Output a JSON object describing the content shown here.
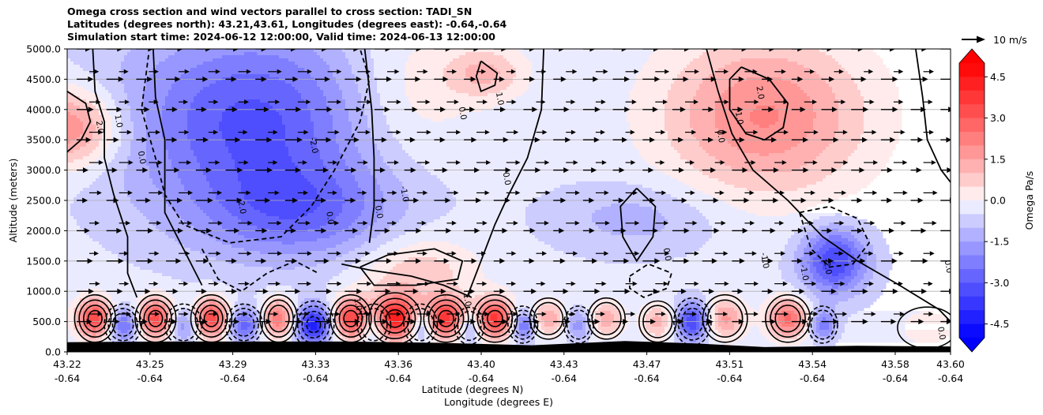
{
  "chart_data": {
    "type": "heatmap",
    "title_lines": [
      "Omega cross section and wind vectors parallel to cross section: TADI_SN",
      "Latitudes (degrees north): 43.21,43.61, Longitudes (degrees east): -0.64,-0.64",
      "Simulation start time: 2024-06-12 12:00:00, Valid time: 2024-06-13 12:00:00"
    ],
    "ylabel": "Altitude (meters)",
    "xlabel_lat": "Latitude (degrees N)",
    "xlabel_lon": "Longitude (degrees E)",
    "ylim": [
      0,
      5000
    ],
    "yticks": [
      "0.0",
      "500.0",
      "1000.0",
      "1500.0",
      "2000.0",
      "2500.0",
      "3000.0",
      "3500.0",
      "4000.0",
      "4500.0",
      "5000.0"
    ],
    "xticks": [
      {
        "lat": "43.22",
        "lon": "-0.64"
      },
      {
        "lat": "43.25",
        "lon": "-0.64"
      },
      {
        "lat": "43.29",
        "lon": "-0.64"
      },
      {
        "lat": "43.33",
        "lon": "-0.64"
      },
      {
        "lat": "43.36",
        "lon": "-0.64"
      },
      {
        "lat": "43.40",
        "lon": "-0.64"
      },
      {
        "lat": "43.43",
        "lon": "-0.64"
      },
      {
        "lat": "43.47",
        "lon": "-0.64"
      },
      {
        "lat": "43.51",
        "lon": "-0.64"
      },
      {
        "lat": "43.54",
        "lon": "-0.64"
      },
      {
        "lat": "43.58",
        "lon": "-0.64"
      },
      {
        "lat": "43.60",
        "lon": "-0.64"
      }
    ],
    "colorbar": {
      "label": "Omega Pa/s",
      "range": [
        -5,
        5
      ],
      "ticks": [
        "-4.5",
        "-3.0",
        "-1.5",
        "0.0",
        "1.5",
        "3.0",
        "4.5"
      ],
      "colormap": "bwr",
      "low_color": "#0000ff",
      "high_color": "#ff0000"
    },
    "quiver_key": "10 m/s",
    "grid": "horizontal",
    "omega_blobs": [
      {
        "lat": 43.22,
        "alt": 3700,
        "sx": 0.016,
        "sy": 450,
        "v": 2.6
      },
      {
        "lat": 43.3,
        "alt": 3800,
        "sx": 0.04,
        "sy": 1100,
        "v": -2.8
      },
      {
        "lat": 43.32,
        "alt": 2300,
        "sx": 0.03,
        "sy": 550,
        "v": -1.8
      },
      {
        "lat": 43.365,
        "alt": 4200,
        "sx": 0.022,
        "sy": 900,
        "v": 1.0
      },
      {
        "lat": 43.4,
        "alt": 4600,
        "sx": 0.012,
        "sy": 300,
        "v": 1.4
      },
      {
        "lat": 43.37,
        "alt": 1300,
        "sx": 0.018,
        "sy": 450,
        "v": 1.3
      },
      {
        "lat": 43.52,
        "alt": 3900,
        "sx": 0.03,
        "sy": 900,
        "v": 2.4
      },
      {
        "lat": 43.55,
        "alt": 1500,
        "sx": 0.01,
        "sy": 380,
        "v": -3.2
      },
      {
        "lat": 43.465,
        "alt": 2200,
        "sx": 0.025,
        "sy": 400,
        "v": -0.9
      },
      {
        "lat": 43.232,
        "alt": 550,
        "sx": 0.0055,
        "sy": 230,
        "v": 3.8
      },
      {
        "lat": 43.244,
        "alt": 450,
        "sx": 0.005,
        "sy": 200,
        "v": -2.5
      },
      {
        "lat": 43.258,
        "alt": 550,
        "sx": 0.0055,
        "sy": 230,
        "v": 3.8
      },
      {
        "lat": 43.27,
        "alt": 450,
        "sx": 0.005,
        "sy": 200,
        "v": -1.8
      },
      {
        "lat": 43.282,
        "alt": 550,
        "sx": 0.0055,
        "sy": 230,
        "v": 3.8
      },
      {
        "lat": 43.296,
        "alt": 450,
        "sx": 0.005,
        "sy": 200,
        "v": -2.5
      },
      {
        "lat": 43.311,
        "alt": 550,
        "sx": 0.005,
        "sy": 230,
        "v": 2.8
      },
      {
        "lat": 43.326,
        "alt": 450,
        "sx": 0.0055,
        "sy": 230,
        "v": -4.0
      },
      {
        "lat": 43.342,
        "alt": 550,
        "sx": 0.0055,
        "sy": 230,
        "v": 3.8
      },
      {
        "lat": 43.352,
        "alt": 450,
        "sx": 0.0045,
        "sy": 200,
        "v": -1.8
      },
      {
        "lat": 43.361,
        "alt": 550,
        "sx": 0.007,
        "sy": 250,
        "v": 4.8
      },
      {
        "lat": 43.372,
        "alt": 450,
        "sx": 0.0045,
        "sy": 200,
        "v": -2.2
      },
      {
        "lat": 43.383,
        "alt": 550,
        "sx": 0.006,
        "sy": 230,
        "v": 4.0
      },
      {
        "lat": 43.393,
        "alt": 430,
        "sx": 0.004,
        "sy": 180,
        "v": -2.0
      },
      {
        "lat": 43.404,
        "alt": 550,
        "sx": 0.006,
        "sy": 230,
        "v": 4.0
      },
      {
        "lat": 43.416,
        "alt": 450,
        "sx": 0.004,
        "sy": 180,
        "v": -2.5
      },
      {
        "lat": 43.427,
        "alt": 550,
        "sx": 0.005,
        "sy": 200,
        "v": 1.8
      },
      {
        "lat": 43.44,
        "alt": 450,
        "sx": 0.004,
        "sy": 180,
        "v": -1.5
      },
      {
        "lat": 43.452,
        "alt": 550,
        "sx": 0.005,
        "sy": 200,
        "v": 1.7
      },
      {
        "lat": 43.474,
        "alt": 500,
        "sx": 0.005,
        "sy": 200,
        "v": 1.6
      },
      {
        "lat": 43.489,
        "alt": 500,
        "sx": 0.005,
        "sy": 230,
        "v": -3.2
      },
      {
        "lat": 43.503,
        "alt": 550,
        "sx": 0.006,
        "sy": 230,
        "v": 2.0
      },
      {
        "lat": 43.53,
        "alt": 550,
        "sx": 0.006,
        "sy": 230,
        "v": 3.0
      },
      {
        "lat": 43.545,
        "alt": 450,
        "sx": 0.004,
        "sy": 180,
        "v": -2.0
      },
      {
        "lat": 43.59,
        "alt": 400,
        "sx": 0.008,
        "sy": 200,
        "v": 0.8
      }
    ],
    "zero_contours": [
      [
        [
          43.231,
          5000
        ],
        [
          43.232,
          4300
        ],
        [
          43.236,
          3800
        ],
        [
          43.236,
          3200
        ],
        [
          43.24,
          2600
        ],
        [
          43.246,
          1900
        ],
        [
          43.246,
          1300
        ],
        [
          43.25,
          900
        ]
      ],
      [
        [
          43.257,
          5000
        ],
        [
          43.258,
          4200
        ],
        [
          43.262,
          3500
        ],
        [
          43.262,
          2800
        ],
        [
          43.262,
          2300
        ],
        [
          43.27,
          1700
        ],
        [
          43.278,
          1100
        ]
      ],
      [
        [
          43.348,
          5000
        ],
        [
          43.351,
          4000
        ],
        [
          43.352,
          3200
        ],
        [
          43.352,
          2400
        ],
        [
          43.35,
          1800
        ]
      ],
      [
        [
          43.425,
          5000
        ],
        [
          43.424,
          4000
        ],
        [
          43.418,
          3200
        ],
        [
          43.41,
          2600
        ],
        [
          43.404,
          2100
        ],
        [
          43.398,
          1500
        ],
        [
          43.392,
          900
        ]
      ],
      [
        [
          43.495,
          5000
        ],
        [
          43.5,
          4300
        ],
        [
          43.506,
          3600
        ],
        [
          43.515,
          3000
        ],
        [
          43.53,
          2500
        ],
        [
          43.545,
          1900
        ],
        [
          43.56,
          1500
        ],
        [
          43.578,
          1100
        ],
        [
          43.595,
          700
        ],
        [
          43.6,
          500
        ]
      ],
      [
        [
          43.585,
          5000
        ],
        [
          43.588,
          4200
        ],
        [
          43.59,
          3500
        ],
        [
          43.596,
          3000
        ],
        [
          43.6,
          2800
        ]
      ],
      [
        [
          43.465,
          2700
        ],
        [
          43.458,
          2400
        ],
        [
          43.459,
          1900
        ],
        [
          43.465,
          1500
        ],
        [
          43.472,
          1900
        ],
        [
          43.473,
          2400
        ],
        [
          43.465,
          2700
        ]
      ],
      [
        [
          43.338,
          1450
        ],
        [
          43.35,
          1350
        ],
        [
          43.368,
          1250
        ],
        [
          43.382,
          1100
        ],
        [
          43.394,
          900
        ]
      ]
    ],
    "neg_contours": [
      [
        [
          43.255,
          4900
        ],
        [
          43.252,
          4000
        ],
        [
          43.258,
          3200
        ],
        [
          43.262,
          2600
        ],
        [
          43.27,
          2100
        ],
        [
          43.29,
          1800
        ],
        [
          43.312,
          1900
        ],
        [
          43.325,
          2400
        ],
        [
          43.335,
          3000
        ],
        [
          43.346,
          3800
        ],
        [
          43.35,
          4500
        ],
        [
          43.346,
          5000
        ]
      ],
      [
        [
          43.278,
          1700
        ],
        [
          43.285,
          1200
        ],
        [
          43.295,
          1000
        ],
        [
          43.306,
          1300
        ],
        [
          43.318,
          1500
        ],
        [
          43.328,
          1300
        ]
      ],
      [
        [
          43.535,
          2300
        ],
        [
          43.54,
          1700
        ],
        [
          43.548,
          1400
        ],
        [
          43.558,
          1450
        ],
        [
          43.565,
          1800
        ],
        [
          43.56,
          2200
        ],
        [
          43.548,
          2400
        ],
        [
          43.535,
          2300
        ]
      ],
      [
        [
          43.462,
          1250
        ],
        [
          43.47,
          1450
        ],
        [
          43.48,
          1300
        ],
        [
          43.478,
          1050
        ],
        [
          43.468,
          900
        ],
        [
          43.462,
          1050
        ],
        [
          43.462,
          1250
        ]
      ]
    ],
    "pos_contours": [
      [
        [
          43.22,
          3300
        ],
        [
          43.226,
          3500
        ],
        [
          43.23,
          3800
        ],
        [
          43.228,
          4100
        ],
        [
          43.22,
          4300
        ]
      ],
      [
        [
          43.51,
          4700
        ],
        [
          43.522,
          4500
        ],
        [
          43.53,
          4100
        ],
        [
          43.528,
          3700
        ],
        [
          43.52,
          3500
        ],
        [
          43.512,
          3600
        ],
        [
          43.505,
          4000
        ],
        [
          43.505,
          4500
        ],
        [
          43.51,
          4700
        ]
      ],
      [
        [
          43.398,
          4800
        ],
        [
          43.405,
          4600
        ],
        [
          43.404,
          4400
        ],
        [
          43.398,
          4300
        ],
        [
          43.396,
          4550
        ],
        [
          43.398,
          4800
        ]
      ],
      [
        [
          43.346,
          1400
        ],
        [
          43.358,
          1600
        ],
        [
          43.378,
          1700
        ],
        [
          43.39,
          1500
        ],
        [
          43.388,
          1200
        ],
        [
          43.37,
          1100
        ],
        [
          43.352,
          1100
        ],
        [
          43.346,
          1400
        ]
      ]
    ],
    "contour_labels": [
      {
        "text": "2.0",
        "lat": 43.233,
        "alt": 3700
      },
      {
        "text": "1.0",
        "lat": 43.241,
        "alt": 3800
      },
      {
        "text": "0.0",
        "lat": 43.251,
        "alt": 3200
      },
      {
        "text": "-2.0",
        "lat": 43.294,
        "alt": 2400
      },
      {
        "text": "-2.0",
        "lat": 43.325,
        "alt": 3400
      },
      {
        "text": "0.0",
        "lat": 43.332,
        "alt": 2200
      },
      {
        "text": "0.0",
        "lat": 43.353,
        "alt": 2300
      },
      {
        "text": "-1.0",
        "lat": 43.364,
        "alt": 2600
      },
      {
        "text": "0.0",
        "lat": 43.389,
        "alt": 3930
      },
      {
        "text": "1.0",
        "lat": 43.405,
        "alt": 4170
      },
      {
        "text": "0.0",
        "lat": 43.408,
        "alt": 2850
      },
      {
        "text": "2.0",
        "lat": 43.517,
        "alt": 4270
      },
      {
        "text": "1.0",
        "lat": 43.508,
        "alt": 3850
      },
      {
        "text": "0.0",
        "lat": 43.5,
        "alt": 3550
      },
      {
        "text": "-1.0",
        "lat": 43.519,
        "alt": 1500
      },
      {
        "text": "-1.0",
        "lat": 43.536,
        "alt": 1300
      },
      {
        "text": "-2.0",
        "lat": 43.546,
        "alt": 1400
      },
      {
        "text": "0.0",
        "lat": 43.477,
        "alt": 1600
      },
      {
        "text": "0.0",
        "lat": 43.598,
        "alt": 1400
      },
      {
        "text": "0.0",
        "lat": 43.595,
        "alt": 300
      },
      {
        "text": "1.0",
        "lat": 43.391,
        "alt": 850
      },
      {
        "text": "1.0",
        "lat": 43.344,
        "alt": 780
      }
    ],
    "terrain": [
      [
        43.22,
        160
      ],
      [
        43.26,
        170
      ],
      [
        43.3,
        170
      ],
      [
        43.34,
        170
      ],
      [
        43.38,
        150
      ],
      [
        43.42,
        110
      ],
      [
        43.46,
        180
      ],
      [
        43.49,
        140
      ],
      [
        43.52,
        80
      ],
      [
        43.56,
        100
      ],
      [
        43.6,
        90
      ]
    ]
  }
}
